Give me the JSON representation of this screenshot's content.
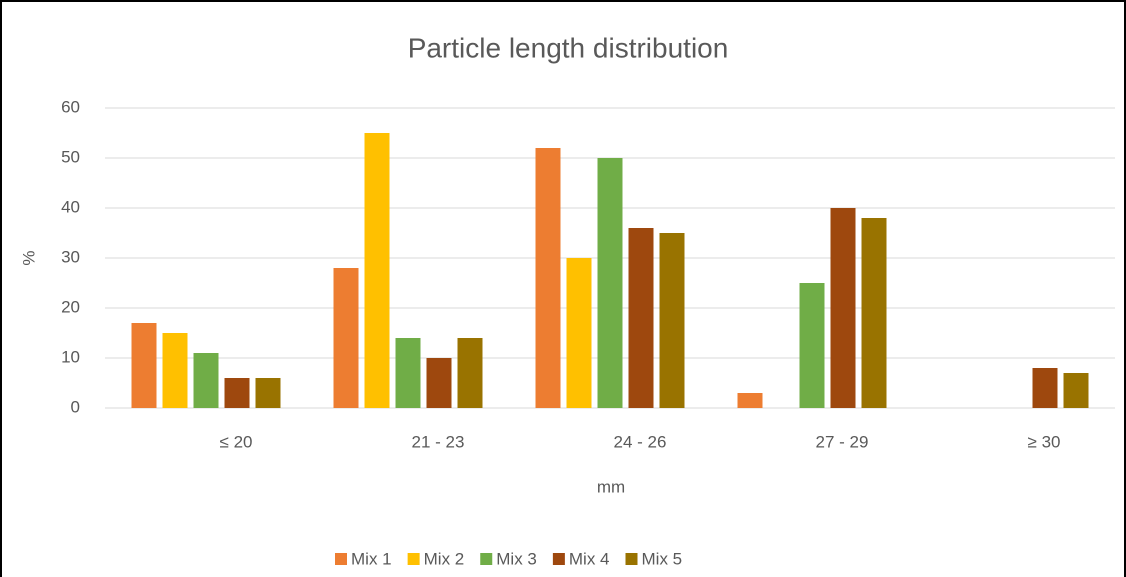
{
  "chart_data": {
    "type": "bar",
    "title": "Particle length distribution",
    "x_label": "mm",
    "y_label": "%",
    "categories": [
      "≤ 20",
      "21 - 23",
      "24 - 26",
      "27 - 29",
      "≥ 30"
    ],
    "series": [
      {
        "name": "Mix 1",
        "color": "#ed7d31",
        "values": [
          17,
          28,
          52,
          3,
          0
        ]
      },
      {
        "name": "Mix 2",
        "color": "#ffc000",
        "values": [
          15,
          55,
          30,
          0,
          0
        ]
      },
      {
        "name": "Mix 3",
        "color": "#70ad47",
        "values": [
          11,
          14,
          50,
          25,
          0
        ]
      },
      {
        "name": "Mix 4",
        "color": "#9e480e",
        "values": [
          6,
          10,
          36,
          40,
          8
        ]
      },
      {
        "name": "Mix 5",
        "color": "#997300",
        "values": [
          6,
          14,
          35,
          38,
          7
        ]
      }
    ],
    "ylim": [
      0,
      60
    ],
    "yticks": [
      0,
      10,
      20,
      30,
      40,
      50,
      60
    ],
    "grid": true,
    "legend": "bottom"
  }
}
